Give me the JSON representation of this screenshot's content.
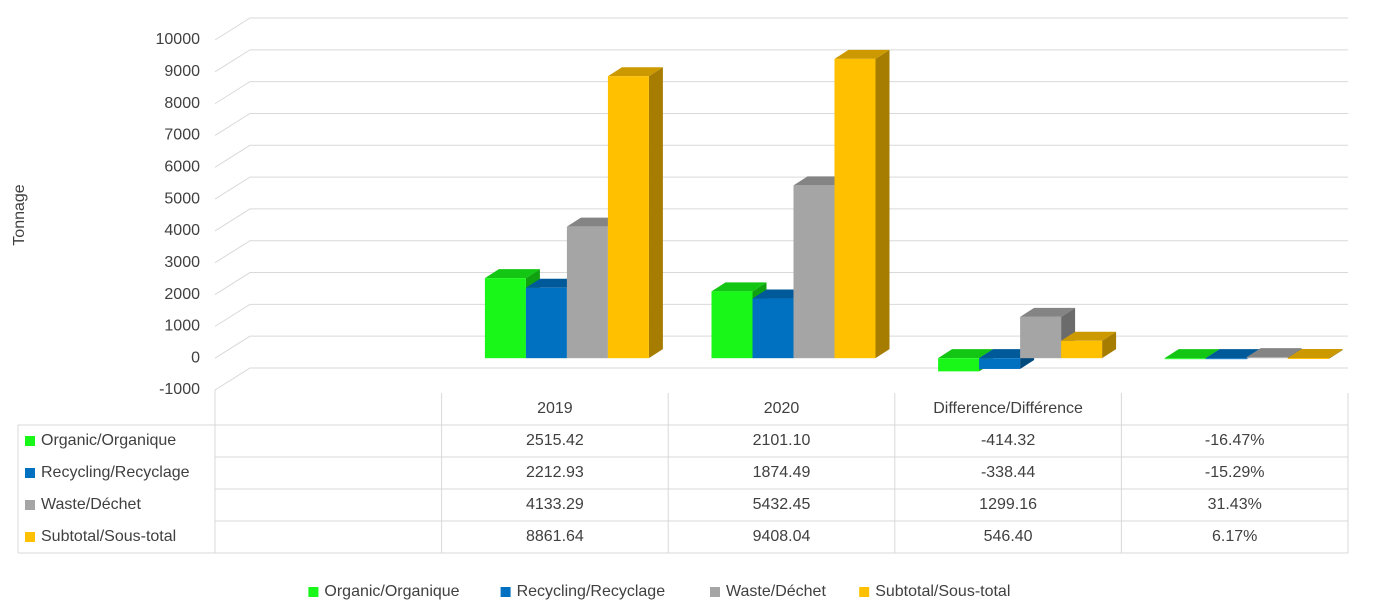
{
  "chart_data": {
    "type": "bar3d",
    "y_axis_label": "Tonnage",
    "categories": [
      null,
      "2019",
      "2020",
      "Difference/Différence",
      null
    ],
    "series": [
      {
        "name": "Organic/Organique",
        "color": "#19f719",
        "values": [
          null,
          2515.42,
          2101.1,
          -414.32,
          -16.47
        ],
        "value_labels": [
          null,
          "2515.42",
          "2101.10",
          "-414.32",
          "-16.47%"
        ]
      },
      {
        "name": "Recycling/Recyclage",
        "color": "#0070c0",
        "values": [
          null,
          2212.93,
          1874.49,
          -338.44,
          -15.29
        ],
        "value_labels": [
          null,
          "2212.93",
          "1874.49",
          "-338.44",
          "-15.29%"
        ]
      },
      {
        "name": "Waste/Déchet",
        "color": "#a5a5a5",
        "values": [
          null,
          4133.29,
          5432.45,
          1299.16,
          31.43
        ],
        "value_labels": [
          null,
          "4133.29",
          "5432.45",
          "1299.16",
          "31.43%"
        ]
      },
      {
        "name": "Subtotal/Sous-total",
        "color": "#ffc000",
        "values": [
          null,
          8861.64,
          9408.04,
          546.4,
          6.17
        ],
        "value_labels": [
          null,
          "8861.64",
          "9408.04",
          "546.40",
          "6.17%"
        ]
      }
    ],
    "ylim": [
      -1000,
      10000
    ],
    "yticks": [
      -1000,
      0,
      1000,
      2000,
      3000,
      4000,
      5000,
      6000,
      7000,
      8000,
      9000,
      10000
    ],
    "grid": true,
    "legend": "bottom",
    "data_table": true
  }
}
